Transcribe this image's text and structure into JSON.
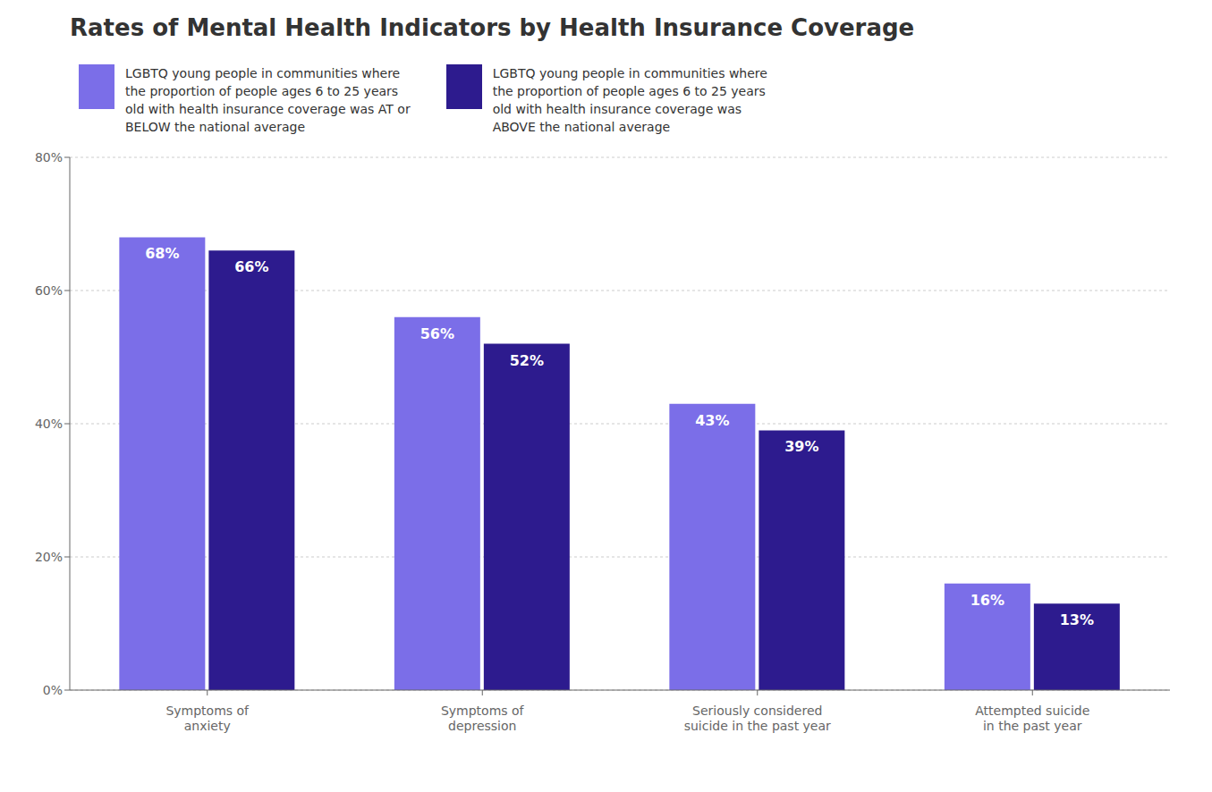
{
  "chart_data": {
    "type": "bar",
    "title": "Rates of Mental Health Indicators by Health Insurance Coverage",
    "categories": [
      "Symptoms of\nanxiety",
      "Symptoms of\ndepression",
      "Seriously considered\nsuicide in the past year",
      "Attempted suicide\nin the past year"
    ],
    "series": [
      {
        "name": "LGBTQ young people in communities where\nthe proportion of people ages 6 to 25 years\nold with health insurance coverage was AT or\nBELOW the national average",
        "color": "#7B6EE8",
        "values": [
          68,
          56,
          43,
          16
        ],
        "value_labels": [
          "68%",
          "56%",
          "43%",
          "16%"
        ]
      },
      {
        "name": "LGBTQ young people in communities where\nthe proportion of people ages 6 to 25 years\nold with health insurance coverage was\nABOVE the national average",
        "color": "#2D1B8E",
        "values": [
          66,
          52,
          39,
          13
        ],
        "value_labels": [
          "66%",
          "52%",
          "39%",
          "13%"
        ]
      }
    ],
    "ylim": [
      0,
      80
    ],
    "yticks": [
      {
        "value": 0,
        "label": "0%"
      },
      {
        "value": 20,
        "label": "20%"
      },
      {
        "value": 40,
        "label": "40%"
      },
      {
        "value": 60,
        "label": "60%"
      },
      {
        "value": 80,
        "label": "80%"
      }
    ],
    "grid": true,
    "legend": "top",
    "data_labels": true
  }
}
